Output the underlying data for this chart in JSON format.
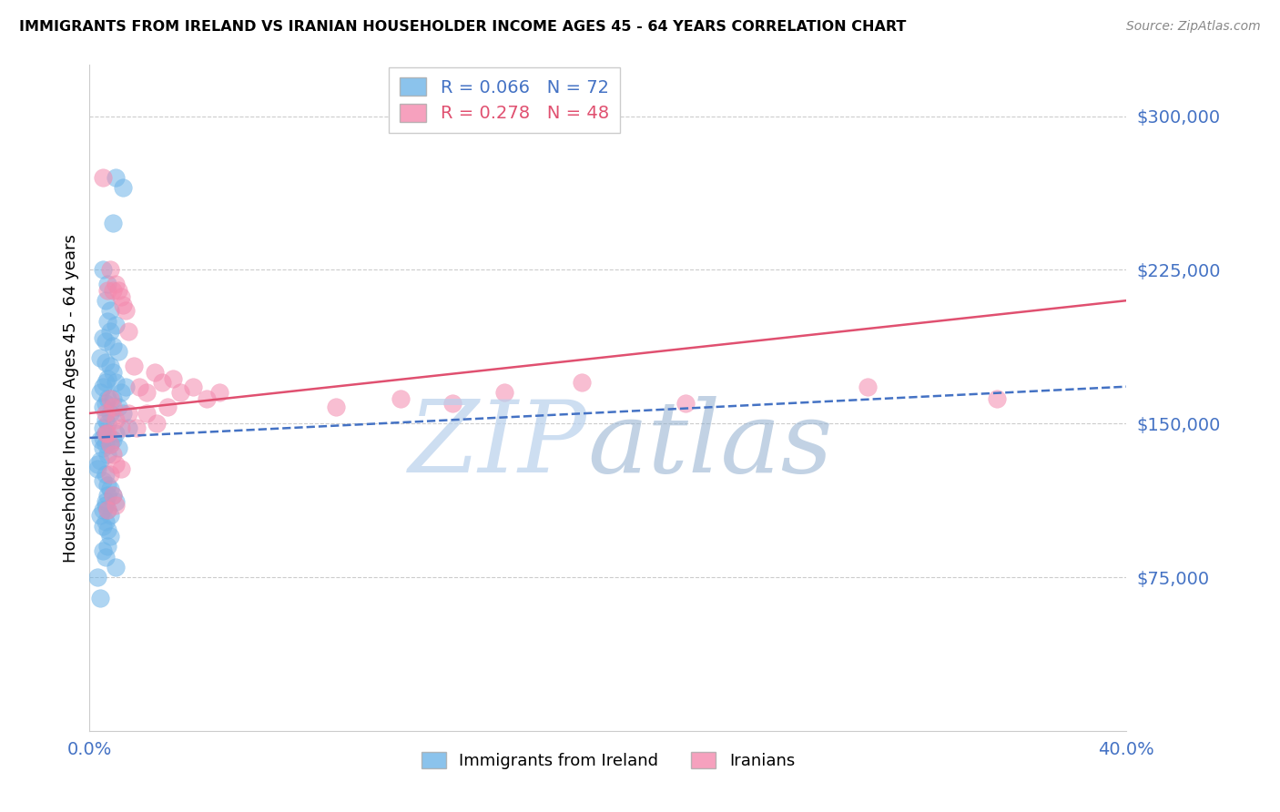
{
  "title": "IMMIGRANTS FROM IRELAND VS IRANIAN HOUSEHOLDER INCOME AGES 45 - 64 YEARS CORRELATION CHART",
  "source": "Source: ZipAtlas.com",
  "ylabel": "Householder Income Ages 45 - 64 years",
  "legend_ireland": "Immigrants from Ireland",
  "legend_iranians": "Iranians",
  "ireland_R": 0.066,
  "ireland_N": 72,
  "iran_R": 0.278,
  "iran_N": 48,
  "xlim": [
    0.0,
    0.4
  ],
  "ylim": [
    0,
    325000
  ],
  "yticks": [
    0,
    75000,
    150000,
    225000,
    300000
  ],
  "ytick_labels": [
    "",
    "$75,000",
    "$150,000",
    "$225,000",
    "$300,000"
  ],
  "xtick_positions": [
    0.0,
    0.4
  ],
  "xtick_labels": [
    "0.0%",
    "40.0%"
  ],
  "ireland_color": "#6EB4E8",
  "iran_color": "#F48AAE",
  "ireland_line_color": "#4472C4",
  "iran_line_color": "#E05070",
  "axis_color": "#4472C4",
  "ireland_trend_x": [
    0.0,
    0.4
  ],
  "ireland_trend_y": [
    143000,
    168000
  ],
  "iran_trend_x": [
    0.0,
    0.4
  ],
  "iran_trend_y": [
    155000,
    210000
  ],
  "ireland_x": [
    0.01,
    0.013,
    0.009,
    0.005,
    0.007,
    0.006,
    0.008,
    0.007,
    0.01,
    0.008,
    0.005,
    0.006,
    0.009,
    0.011,
    0.004,
    0.006,
    0.008,
    0.009,
    0.007,
    0.006,
    0.005,
    0.004,
    0.007,
    0.006,
    0.005,
    0.008,
    0.006,
    0.007,
    0.005,
    0.006,
    0.005,
    0.004,
    0.006,
    0.005,
    0.007,
    0.004,
    0.003,
    0.003,
    0.006,
    0.005,
    0.007,
    0.008,
    0.009,
    0.01,
    0.006,
    0.007,
    0.008,
    0.006,
    0.005,
    0.007,
    0.01,
    0.012,
    0.014,
    0.009,
    0.011,
    0.013,
    0.015,
    0.01,
    0.008,
    0.009,
    0.011,
    0.007,
    0.006,
    0.005,
    0.004,
    0.008,
    0.007,
    0.005,
    0.006,
    0.01,
    0.003,
    0.004
  ],
  "ireland_y": [
    270000,
    265000,
    248000,
    225000,
    218000,
    210000,
    205000,
    200000,
    198000,
    195000,
    192000,
    190000,
    188000,
    185000,
    182000,
    180000,
    178000,
    175000,
    172000,
    170000,
    168000,
    165000,
    162000,
    160000,
    158000,
    155000,
    152000,
    150000,
    148000,
    145000,
    143000,
    142000,
    140000,
    138000,
    135000,
    132000,
    130000,
    128000,
    125000,
    122000,
    120000,
    118000,
    115000,
    112000,
    110000,
    108000,
    105000,
    102000,
    100000,
    98000,
    170000,
    165000,
    168000,
    162000,
    158000,
    155000,
    148000,
    145000,
    140000,
    142000,
    138000,
    115000,
    112000,
    108000,
    105000,
    95000,
    90000,
    88000,
    85000,
    80000,
    75000,
    65000
  ],
  "iran_x": [
    0.005,
    0.007,
    0.008,
    0.009,
    0.01,
    0.011,
    0.012,
    0.013,
    0.014,
    0.015,
    0.017,
    0.019,
    0.022,
    0.025,
    0.028,
    0.032,
    0.035,
    0.04,
    0.045,
    0.05,
    0.006,
    0.008,
    0.009,
    0.01,
    0.012,
    0.015,
    0.018,
    0.022,
    0.026,
    0.03,
    0.006,
    0.007,
    0.008,
    0.009,
    0.01,
    0.012,
    0.008,
    0.009,
    0.01,
    0.007,
    0.3,
    0.35,
    0.23,
    0.19,
    0.16,
    0.14,
    0.12,
    0.095
  ],
  "iran_y": [
    270000,
    215000,
    225000,
    215000,
    218000,
    215000,
    212000,
    208000,
    205000,
    195000,
    178000,
    168000,
    165000,
    175000,
    170000,
    172000,
    165000,
    168000,
    162000,
    165000,
    155000,
    162000,
    158000,
    152000,
    148000,
    155000,
    148000,
    155000,
    150000,
    158000,
    145000,
    145000,
    140000,
    135000,
    130000,
    128000,
    125000,
    115000,
    110000,
    108000,
    168000,
    162000,
    160000,
    170000,
    165000,
    160000,
    162000,
    158000
  ]
}
